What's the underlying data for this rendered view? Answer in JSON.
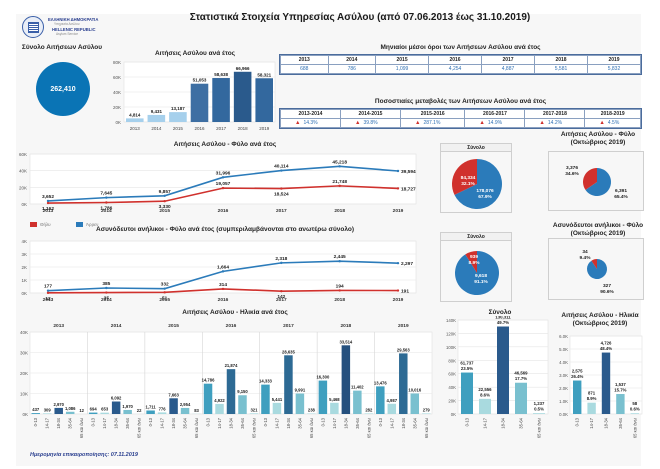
{
  "header": {
    "title": "Στατιστικά Στοιχεία Υπηρεσίας Ασύλου (από 07.06.2013 έως 31.10.2019)",
    "logo": {
      "line1": "ΕΛΛΗΝΙΚΗ ΔΗΜΟΚΡΑΤΙΑ",
      "line2": "Υπηρεσία Ασύλου",
      "line3": "HELLENIC REPUBLIC",
      "line4": "Asylum Service"
    }
  },
  "total": {
    "label": "Σύνολο Αιτήσεων Ασύλου",
    "value": "262,410",
    "color": "#0a74b5"
  },
  "monthly_avg": {
    "title": "Μηνιαίοι μέσοι όροι των Αιτήσεων Ασύλου ανά έτος",
    "years": [
      "2013",
      "2014",
      "2015",
      "2016",
      "2017",
      "2018",
      "2019"
    ],
    "values": [
      "688",
      "786",
      "1,099",
      "4,254",
      "4,887",
      "5,581",
      "5,832"
    ]
  },
  "pct_change": {
    "title": "Ποσοστιαίες μεταβολές των Αιτήσεων Ασύλου ανά έτος",
    "periods": [
      "2013-2014",
      "2014-2015",
      "2015-2016",
      "2016-2017",
      "2017-2018",
      "2018-2019"
    ],
    "values": [
      "14.3%",
      "39.8%",
      "287.1%",
      "14.9%",
      "14.2%",
      "4.5%"
    ],
    "icon": "triangle-up-icon"
  },
  "colors": {
    "female": "#d0312d",
    "male": "#2b7bba",
    "bar_light": "#9fcbe8",
    "bar_dark": "#2a5a8c"
  },
  "legend": {
    "female": "Θήλυ",
    "male": "Άρρεν"
  },
  "footer": {
    "updated": "Ημερομηνία επικαιροποίησης: 07.11.2019"
  },
  "chart_data": [
    {
      "id": "yearly",
      "type": "bar",
      "title": "Αιτήσεις Ασύλου ανά έτος",
      "categories": [
        "2013",
        "2014",
        "2015",
        "2016",
        "2017",
        "2018",
        "2019"
      ],
      "values": [
        4814,
        9431,
        13187,
        51053,
        58638,
        66966,
        58321
      ],
      "labels": [
        "4,814",
        "9,431",
        "13,187",
        "51,053",
        "58,638",
        "66,966",
        "58,321"
      ],
      "yticks": [
        "0K",
        "20K",
        "40K",
        "60K",
        "80K"
      ],
      "ylim": [
        0,
        80000
      ],
      "grid": true
    },
    {
      "id": "gender_line",
      "type": "line",
      "title": "Αιτήσεις Ασύλου - Φύλο ανά έτος",
      "categories": [
        "2013",
        "2014",
        "2015",
        "2016",
        "2017",
        "2018",
        "2019"
      ],
      "series": [
        {
          "name": "Άρρεν",
          "values": [
            3652,
            7645,
            9857,
            31996,
            40114,
            45218,
            39594
          ],
          "labels": [
            "3,652",
            "7,645",
            "9,857",
            "31,996",
            "40,114",
            "45,218",
            "39,594"
          ]
        },
        {
          "name": "Θήλυ",
          "values": [
            1162,
            1786,
            3330,
            19057,
            18524,
            21748,
            18727
          ],
          "labels": [
            "1,162",
            "1,786",
            "3,330",
            "19,057",
            "18,524",
            "21,748",
            "18,727"
          ]
        }
      ],
      "yticks": [
        "0K",
        "20K",
        "40K",
        "60K"
      ],
      "ylim": [
        0,
        60000
      ],
      "legend": "bottom-left"
    },
    {
      "id": "gender_pie_total",
      "type": "pie",
      "title": "Σύνολο",
      "slices": [
        {
          "name": "Θήλυ",
          "value": 84334,
          "label": "84,334",
          "pct": "32.1%"
        },
        {
          "name": "Άρρεν",
          "value": 178076,
          "label": "178,076",
          "pct": "67.9%"
        }
      ]
    },
    {
      "id": "gender_pie_month",
      "type": "pie",
      "title": "Αιτήσεις Ασύλου - Φύλο (Οκτώβριος 2019)",
      "slices": [
        {
          "name": "Θήλυ",
          "value": 3376,
          "label": "3,376",
          "pct": "34.6%"
        },
        {
          "name": "Άρρεν",
          "value": 6391,
          "label": "6,391",
          "pct": "65.4%"
        }
      ]
    },
    {
      "id": "minors_line",
      "type": "line",
      "title": "Ασυνόδευτοι ανήλικοι - Φύλο ανά έτος (συμπεριλαμβάνονται στο ανωτέρω σύνολο)",
      "categories": [
        "2013",
        "2014",
        "2015",
        "2016",
        "2017",
        "2018",
        "2019"
      ],
      "series": [
        {
          "name": "Άρρεν",
          "values": [
            177,
            385,
            332,
            1664,
            2318,
            2445,
            2297
          ],
          "labels": [
            "177",
            "385",
            "332",
            "1,664",
            "2,318",
            "2,445",
            "2,297"
          ]
        },
        {
          "name": "Θήλυ",
          "values": [
            12,
            35,
            51,
            314,
            142,
            194,
            191
          ],
          "labels": [
            "12",
            "35",
            "51",
            "314",
            "142",
            "194",
            "191"
          ]
        }
      ],
      "yticks": [
        "0K",
        "1K",
        "2K",
        "3K",
        "4K"
      ],
      "ylim": [
        0,
        4000
      ]
    },
    {
      "id": "minors_pie_total",
      "type": "pie",
      "title": "Σύνολο",
      "slices": [
        {
          "name": "Θήλυ",
          "value": 939,
          "label": "939",
          "pct": "8.9%"
        },
        {
          "name": "Άρρεν",
          "value": 9618,
          "label": "9,618",
          "pct": "91.1%"
        }
      ]
    },
    {
      "id": "minors_pie_month",
      "type": "pie",
      "title": "Ασυνόδευτοι ανήλικοι - Φύλο (Οκτώβριος 2019)",
      "slices": [
        {
          "name": "Θήλυ",
          "value": 34,
          "label": "34",
          "pct": "9.4%"
        },
        {
          "name": "Άρρεν",
          "value": 327,
          "label": "327",
          "pct": "90.6%"
        }
      ]
    },
    {
      "id": "age_by_year",
      "type": "bar",
      "title": "Αιτήσεις Ασύλου - Ηλικία ανά έτος",
      "groups": [
        "2013",
        "2014",
        "2015",
        "2016",
        "2017",
        "2018",
        "2019"
      ],
      "categories": [
        "0-13",
        "14-17",
        "18-34",
        "35-64",
        "65 και άνω"
      ],
      "values": [
        [
          437,
          309,
          2970,
          1086,
          12
        ],
        [
          694,
          653,
          6092,
          1970,
          22
        ],
        [
          1711,
          776,
          7663,
          2954,
          83
        ],
        [
          14786,
          4922,
          21874,
          9150,
          321
        ],
        [
          14333,
          5441,
          28635,
          9991,
          238
        ],
        [
          16300,
          5468,
          33514,
          11402,
          282
        ],
        [
          13476,
          4987,
          29563,
          10016,
          279
        ]
      ],
      "yticks": [
        "0K",
        "10K",
        "20K",
        "30K",
        "40K"
      ],
      "ylim": [
        0,
        40000
      ]
    },
    {
      "id": "age_total",
      "type": "bar",
      "title": "Σύνολο",
      "categories": [
        "0-13",
        "14-17",
        "18-34",
        "35-64",
        "65 και άνω"
      ],
      "values": [
        61737,
        22556,
        130311,
        46569,
        1237
      ],
      "labels": [
        "61,737",
        "22,556",
        "130,311",
        "46,569",
        "1,237"
      ],
      "pcts": [
        "23.5%",
        "8.6%",
        "49.7%",
        "17.7%",
        "0.5%"
      ],
      "yticks": [
        "0K",
        "20K",
        "40K",
        "60K",
        "80K",
        "100K",
        "120K",
        "140K"
      ],
      "ylim": [
        0,
        140000
      ]
    },
    {
      "id": "age_month",
      "type": "bar",
      "title": "Αιτήσεις Ασύλου - Ηλικία (Οκτώβριος 2019)",
      "categories": [
        "0-13",
        "14-17",
        "18-34",
        "35-64",
        "65 και άνω"
      ],
      "values": [
        2575,
        871,
        4726,
        1537,
        58
      ],
      "labels": [
        "2,575",
        "871",
        "4,726",
        "1,537",
        "58"
      ],
      "pcts": [
        "26.4%",
        "8.9%",
        "48.4%",
        "15.7%",
        "0.6%"
      ],
      "yticks": [
        "0.0K",
        "1.0K",
        "2.0K",
        "3.0K",
        "4.0K",
        "5.0K",
        "6.0K"
      ],
      "ylim": [
        0,
        6000
      ]
    }
  ]
}
